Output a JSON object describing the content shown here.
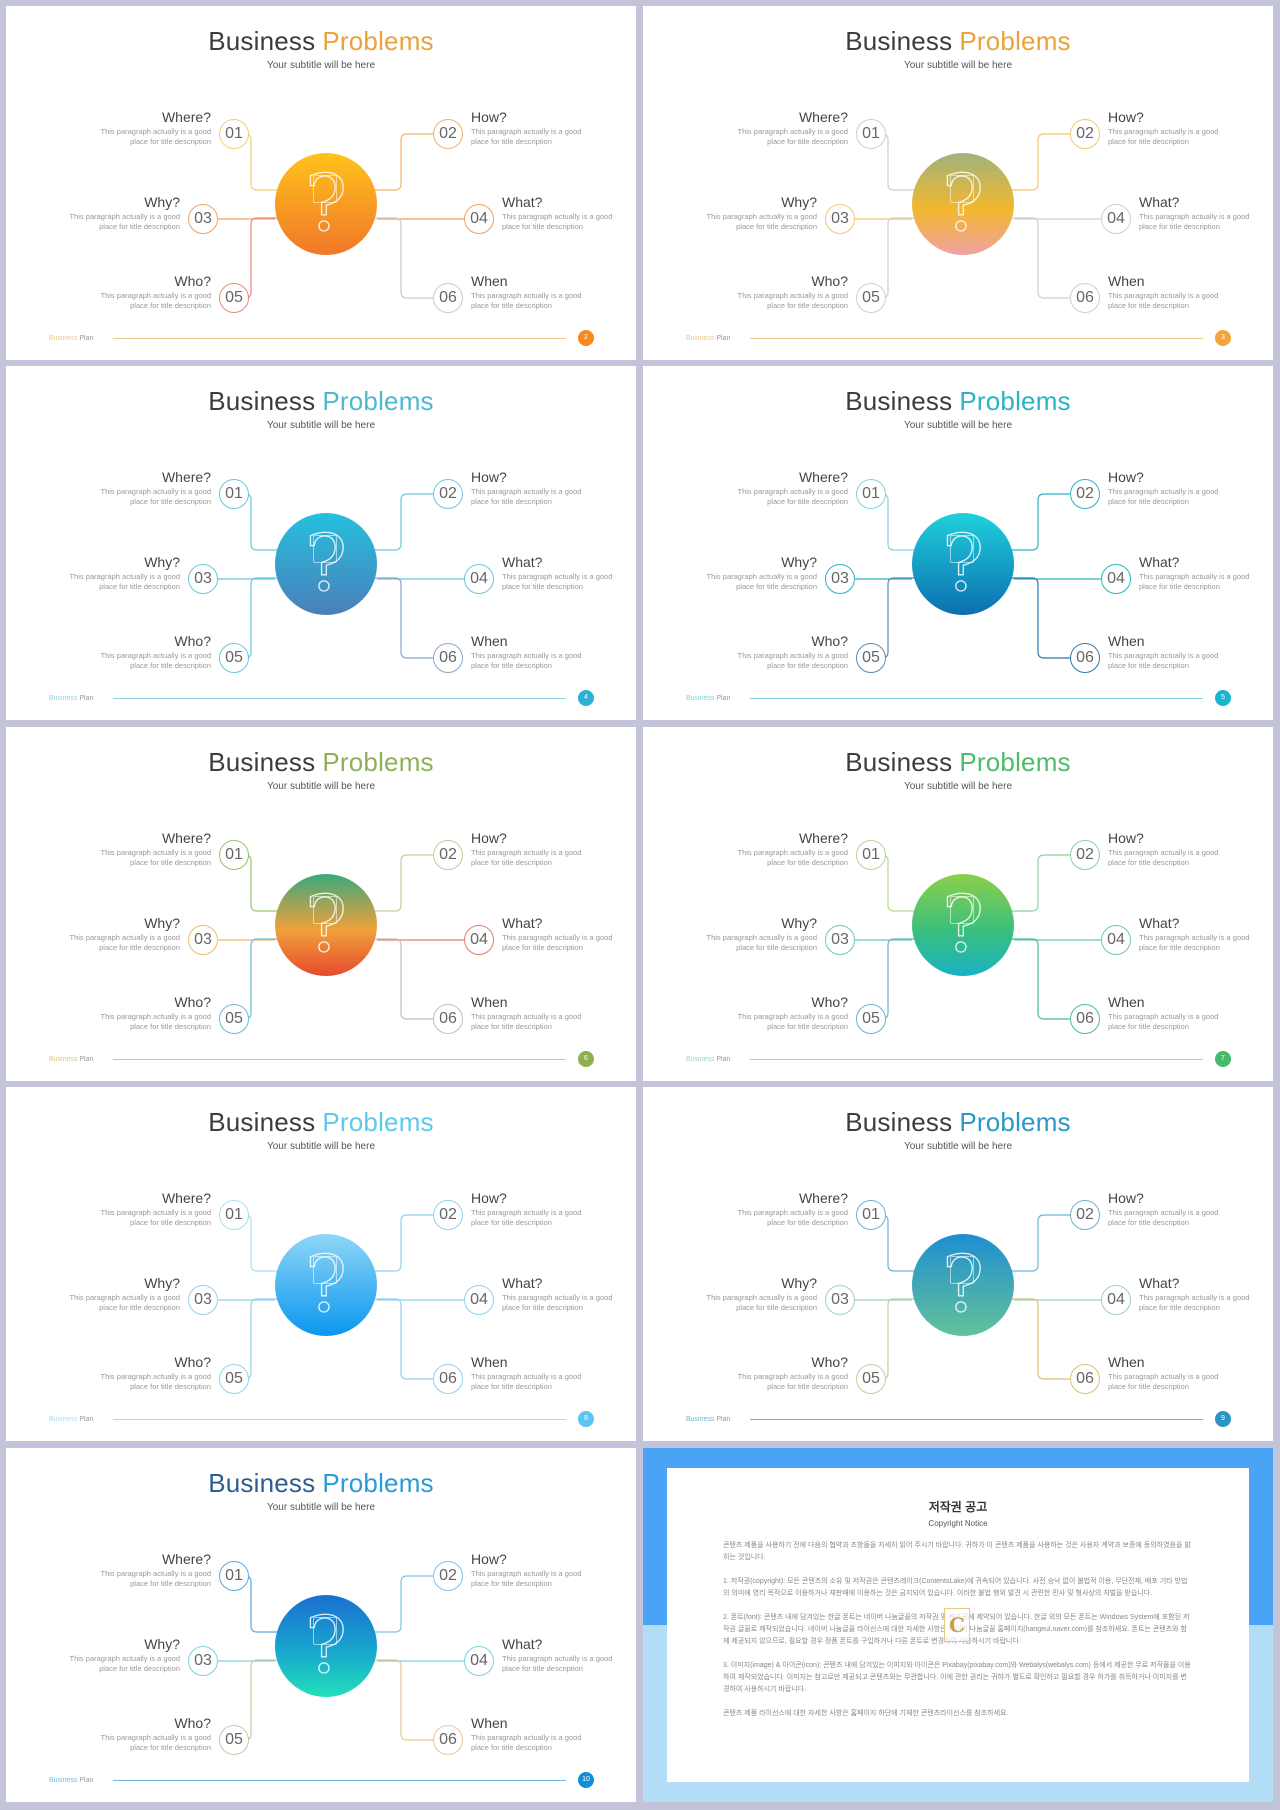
{
  "slide_common": {
    "title_word1": "Business",
    "title_word2": "Problems",
    "subtitle": "Your subtitle will be here",
    "footer_word1": "Business",
    "footer_word2": "Plan",
    "items": [
      {
        "num": "01",
        "label": "Where?",
        "desc": "This paragraph actually is a good place for title description"
      },
      {
        "num": "02",
        "label": "How?",
        "desc": "This paragraph actually is a good place for title description"
      },
      {
        "num": "03",
        "label": "Why?",
        "desc": "This paragraph actually is a good place for title description"
      },
      {
        "num": "04",
        "label": "What?",
        "desc": "This paragraph actually is a good place for title description"
      },
      {
        "num": "05",
        "label": "Who?",
        "desc": "This paragraph actually is a good place for title description"
      },
      {
        "num": "06",
        "label": "When",
        "desc": "This paragraph actually is a good place for title description"
      }
    ]
  },
  "slides": [
    {
      "page": "2",
      "accent": "#e8a33a",
      "grad_top": "#ffc31a",
      "grad_bottom": "#f0772a",
      "line_colors": [
        "#f2cf75",
        "#f2b36b",
        "#f0a460",
        "#f0a05a",
        "#e58a7a",
        "#c9c9c9"
      ],
      "footer_color": "#f0c987",
      "badge": "#f58a1f"
    },
    {
      "page": "3",
      "accent": "#e8a33a",
      "grad_top": "#9fb37e",
      "grad_bottom": "#f0a2a4",
      "grad_mid": "#f2b82e",
      "line_colors": [
        "#cfcfcf",
        "#f2c86a",
        "#f2c86a",
        "#cfcfcf",
        "#cfcfcf",
        "#cfcfcf"
      ],
      "footer_color": "#f0c987",
      "badge": "#f5a33a"
    },
    {
      "page": "4",
      "accent": "#4fb8d0",
      "grad_top": "#25c0dd",
      "grad_bottom": "#4a7fbb",
      "line_colors": [
        "#6cc6da",
        "#6cc6da",
        "#6cc6da",
        "#6cc6da",
        "#6cc6da",
        "#8aa3c9"
      ],
      "footer_color": "#8fd3e3",
      "badge": "#2bb3d6"
    },
    {
      "page": "5",
      "accent": "#2ab3c6",
      "grad_top": "#1fd0dc",
      "grad_bottom": "#0c6fb0",
      "line_colors": [
        "#7fd3dc",
        "#2ab3c6",
        "#2ab3c6",
        "#2ab3c6",
        "#5a8ab0",
        "#2a7ba8"
      ],
      "footer_color": "#7fd3dc",
      "badge": "#1ab4d0"
    },
    {
      "page": "6",
      "accent": "#8fb05a",
      "grad_top": "#3ca87c",
      "grad_bottom": "#e64a2f",
      "grad_mid": "#f0a03a",
      "line_colors": [
        "#9ac46c",
        "#c9c9a0",
        "#f2b870",
        "#e07d6c",
        "#6cbad6",
        "#bfbfbf"
      ],
      "footer_color": "#d3c88a",
      "badge": "#8fb050"
    },
    {
      "page": "7",
      "accent": "#4cbb6c",
      "grad_top": "#8ccf4a",
      "grad_bottom": "#18b2c4",
      "grad_mid": "#3cbf7c",
      "line_colors": [
        "#b3d98c",
        "#8fd0a0",
        "#6cc7bd",
        "#6cc7bd",
        "#6cb0cf",
        "#4cbb9c"
      ],
      "footer_color": "#9ed7b0",
      "badge": "#47b96b"
    },
    {
      "page": "8",
      "accent": "#5ec8ec",
      "grad_top": "#8fd6f6",
      "grad_bottom": "#0a97ef",
      "line_colors": [
        "#a8dff2",
        "#8fd2ee",
        "#8fd2ee",
        "#8fd2ee",
        "#8fd2ee",
        "#8fd2ee"
      ],
      "footer_color": "#a8dcf0",
      "badge": "#5ac5f0"
    },
    {
      "page": "9",
      "accent": "#2a98c4",
      "grad_top": "#1f8ed0",
      "grad_bottom": "#62c29a",
      "line_colors": [
        "#6cb3d4",
        "#6cb3d4",
        "#9ccfcf",
        "#9ccfcf",
        "#c9c9a0",
        "#e0c070"
      ],
      "footer_color": "#6fb9d9",
      "badge": "#2a94c4"
    },
    {
      "page": "10",
      "accent": "#2a9bd6",
      "grad_top": "#1a6fd0",
      "grad_bottom": "#22e0b9",
      "grad_mid": "#19a6cf",
      "line_colors": [
        "#5aa8dd",
        "#7cc4e8",
        "#7cd0e0",
        "#7cd0e0",
        "#c9c9a0",
        "#e8c890"
      ],
      "footer_color": "#6fb9e8",
      "badge": "#0f8fd9",
      "title_color": "#2b5f8f"
    }
  ],
  "notice": {
    "title": "저작권 공고",
    "subtitle": "Copyright Notice",
    "p0": "콘텐츠 제품을 사용하기 전에 다음의 협약과 조항들을 자세히 읽어 주시기 바랍니다. 귀하가 이 콘텐츠 제품을 사용하는 것은 사용자 계약과 보증에 동의하였음을 밝히는 것입니다.",
    "p1": "1. 저작권(copyright): 모든 콘텐츠의 소유 및 저작권은 콘텐츠레이크(ContentsLake)에 귀속되어 있습니다. 사전 승낙 없이 불법적 이용, 무단전재, 배포 기타 방법의 의미에 영리 목적으로 이용하거나 재판매에 이용하는 것은 금지되어 있습니다. 이러한 불법 행위 발견 시 관련한 민사 및 형사상의 처벌을 받습니다.",
    "p2": "2. 폰트(font): 콘텐츠 내에 담겨있는 한글 폰트는 네이버 나눔글꼴의 저작권 및 배포권에 제약되어 있습니다. 한글 외의 모든 폰트는 Windows System에 포함된 저작권 글꼴로 제작되었습니다. 네이버 나눔글꼴 라이선스에 대한 자세한 사항은 네이버 나눔글꼴 홈페이지(hangeul.naver.com)를 참조하세요. 폰트는 콘텐츠와 함께 제공되지 않으므로, 필요할 경우 정품 폰트를 구입하거나 다른 폰트로 변경하여 사용하시기 바랍니다.",
    "p3": "3. 이미지(image) & 아이콘(icon): 콘텐츠 내에 담겨있는 이미지와 아이콘은 Pixabay(pixabay.com)와 Webalys(webalys.com) 등에서 제공한 무료 저작물을 이용하여 제작되었습니다. 이미지는 참고로만 제공되고 콘텐츠와는 무관합니다. 이에 관한 권리는 귀하가 별도로 확인하고 필요할 경우 허가를 취득하거나 이미지를 변경하여 사용하시기 바랍니다.",
    "p4": "콘텐츠 제품 라이선스에 대한 자세한 사항은 홈페이지 하단에 기재한 콘텐츠라이선스를 참조하세요.",
    "logo_letter": "C",
    "band_top": "#4aa3f5",
    "band_bottom": "#b3ddf7"
  }
}
